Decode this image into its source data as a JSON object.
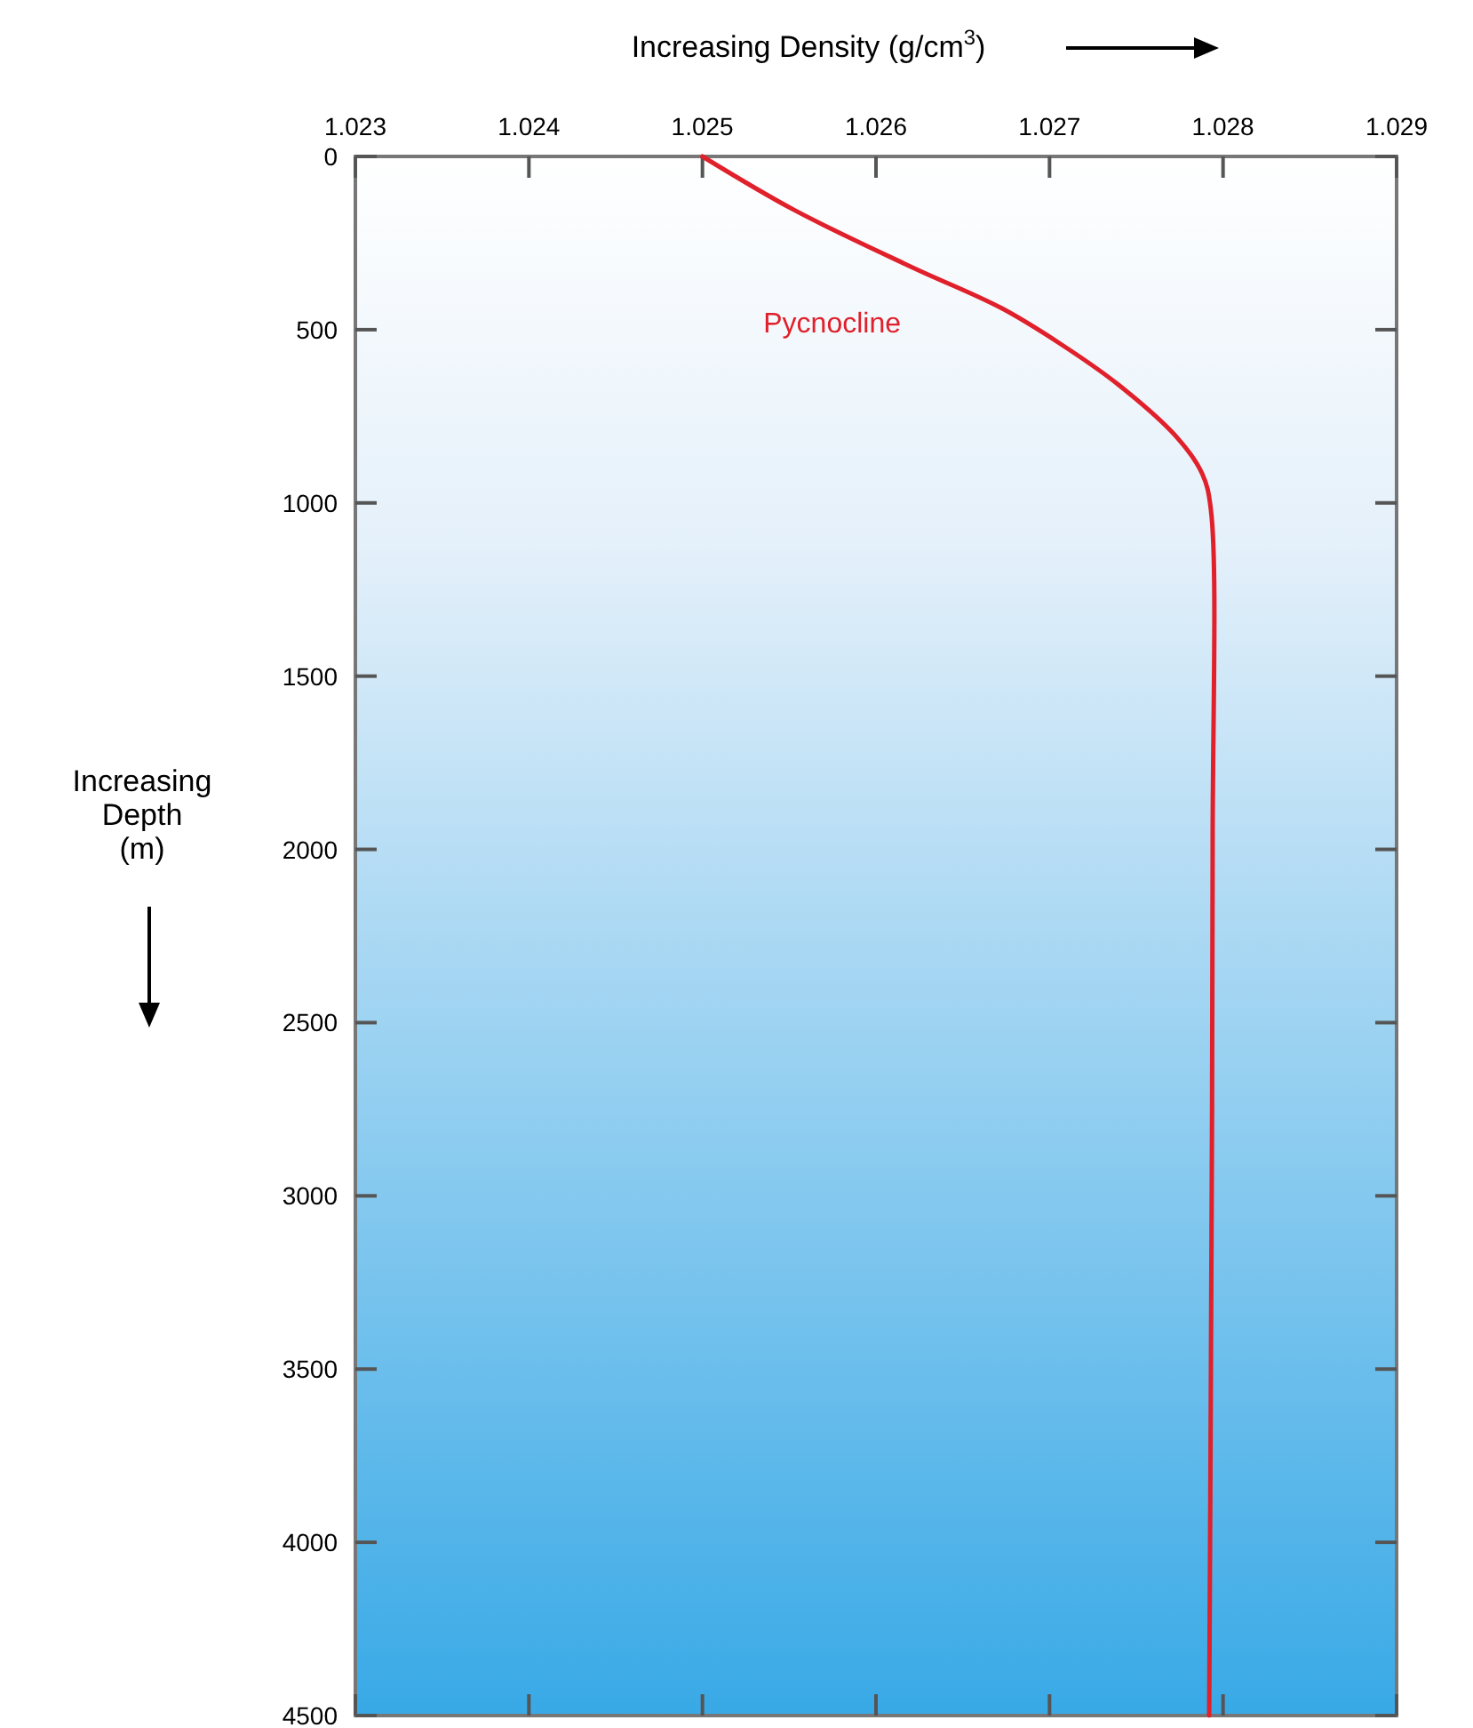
{
  "chart_data": {
    "type": "line",
    "xlabel": "Increasing Density (g/cm$^{3}$)",
    "ylabel": "Increasing Depth (m)",
    "xlim": [
      1.023,
      1.029
    ],
    "xticks": [
      1.023,
      1.024,
      1.025,
      1.026,
      1.027,
      1.028,
      1.029
    ],
    "ylim": [
      4500,
      0
    ],
    "yticks": [
      0,
      500,
      1000,
      1500,
      2000,
      2500,
      3000,
      3500,
      4000,
      4500
    ],
    "grid": false,
    "marker": "none",
    "line_style": "solid",
    "series": [
      {
        "name": "Pycnocline",
        "color": "#e0202a",
        "x": [
          1.025,
          1.02553,
          1.0262,
          1.02672,
          1.02706,
          1.0274,
          1.02774,
          1.02788,
          1.02793,
          1.02794,
          1.02793,
          1.02792
        ],
        "values": [
          0,
          155,
          318,
          437,
          540,
          660,
          814,
          916,
          1020,
          2000,
          3500,
          4500
        ]
      }
    ]
  }
}
